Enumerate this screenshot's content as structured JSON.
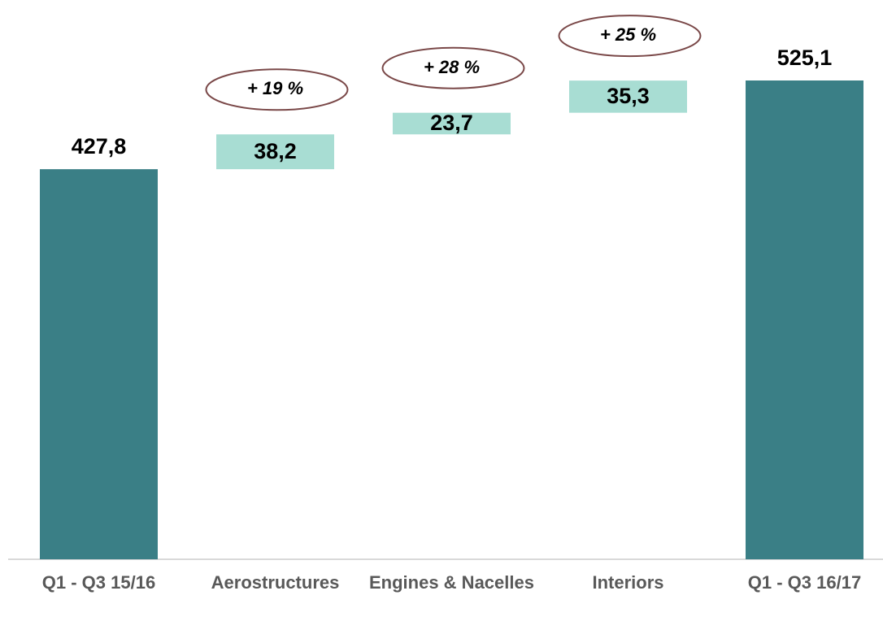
{
  "chart_data": {
    "type": "waterfall",
    "categories": [
      "Q1 - Q3 15/16",
      "Aerostructures",
      "Engines & Nacelles",
      "Interiors",
      "Q1 - Q3 16/17"
    ],
    "values": [
      427.8,
      38.2,
      23.7,
      35.3,
      525.1
    ],
    "value_labels": [
      "427,8",
      "38,2",
      "23,7",
      "35,3",
      "525,1"
    ],
    "measure": [
      "absolute",
      "relative",
      "relative",
      "relative",
      "absolute"
    ],
    "colors": [
      "#3a7f86",
      "#a8ddd3",
      "#a8ddd3",
      "#a8ddd3",
      "#3a7f86"
    ],
    "annotations": [
      null,
      "+ 19 %",
      "+ 28 %",
      "+ 25 %",
      null
    ],
    "annotation_color": "#7a4848"
  }
}
